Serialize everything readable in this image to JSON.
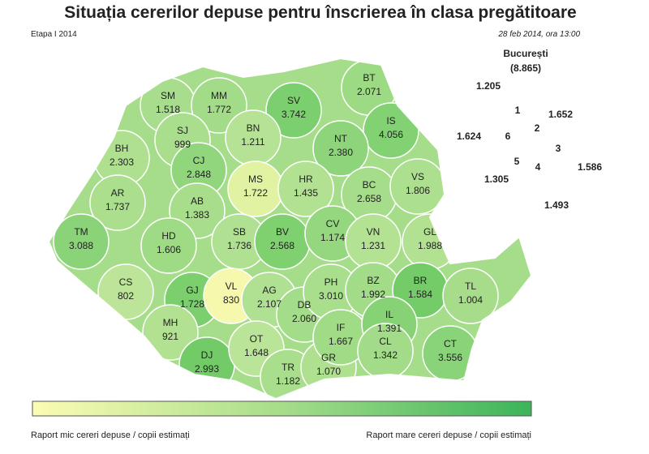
{
  "header": {
    "title": "Situația cererilor depuse pentru înscrierea în clasa pregătitoare",
    "stage": "Etapa I 2014",
    "date": "28 feb 2014, ora 13:00"
  },
  "counties": [
    {
      "code": "SM",
      "count": "1.518",
      "color": "#a7dd8c"
    },
    {
      "code": "MM",
      "count": "1.772",
      "color": "#a3dc88"
    },
    {
      "code": "BT",
      "count": "2.071",
      "color": "#9dda84"
    },
    {
      "code": "SV",
      "count": "3.742",
      "color": "#7ccf6e"
    },
    {
      "code": "IS",
      "count": "4.056",
      "color": "#82d172"
    },
    {
      "code": "BN",
      "count": "1.211",
      "color": "#b5e294"
    },
    {
      "code": "SJ",
      "count": "999",
      "color": "#a9de8c"
    },
    {
      "code": "BH",
      "count": "2.303",
      "color": "#aee08f"
    },
    {
      "code": "CJ",
      "count": "2.848",
      "color": "#91d67c"
    },
    {
      "code": "NT",
      "count": "2.380",
      "color": "#8dd47a"
    },
    {
      "code": "MS",
      "count": "1.722",
      "color": "#e1f2a2"
    },
    {
      "code": "HR",
      "count": "1.435",
      "color": "#b2e192"
    },
    {
      "code": "BC",
      "count": "2.658",
      "color": "#a6dd8a"
    },
    {
      "code": "VS",
      "count": "1.806",
      "color": "#acdf8e"
    },
    {
      "code": "AR",
      "count": "1.737",
      "color": "#abdf8d"
    },
    {
      "code": "AB",
      "count": "1.383",
      "color": "#a8de8b"
    },
    {
      "code": "TM",
      "count": "3.088",
      "color": "#8ad379"
    },
    {
      "code": "HD",
      "count": "1.606",
      "color": "#9fdb85"
    },
    {
      "code": "SB",
      "count": "1.736",
      "color": "#b0e091"
    },
    {
      "code": "BV",
      "count": "2.568",
      "color": "#7fd06f"
    },
    {
      "code": "CV",
      "count": "1.174",
      "color": "#94d77e"
    },
    {
      "code": "VN",
      "count": "1.231",
      "color": "#b4e293"
    },
    {
      "code": "GL",
      "count": "1.988",
      "color": "#b3e192"
    },
    {
      "code": "CS",
      "count": "802",
      "color": "#bce599"
    },
    {
      "code": "GJ",
      "count": "1.728",
      "color": "#7ccf6d"
    },
    {
      "code": "VL",
      "count": "830",
      "color": "#f6f8ae"
    },
    {
      "code": "AG",
      "count": "2.107",
      "color": "#b0e091"
    },
    {
      "code": "DB",
      "count": "2.060",
      "color": "#a4dd89"
    },
    {
      "code": "PH",
      "count": "3.010",
      "color": "#a9de8c"
    },
    {
      "code": "BZ",
      "count": "1.992",
      "color": "#a2dc88"
    },
    {
      "code": "BR",
      "count": "1.584",
      "color": "#74cc69"
    },
    {
      "code": "TL",
      "count": "1.004",
      "color": "#a7dd8a"
    },
    {
      "code": "MH",
      "count": "921",
      "color": "#b2e192"
    },
    {
      "code": "DJ",
      "count": "2.993",
      "color": "#73cb68"
    },
    {
      "code": "OT",
      "count": "1.648",
      "color": "#bae497"
    },
    {
      "code": "TR",
      "count": "1.182",
      "color": "#a9de8c"
    },
    {
      "code": "GR",
      "count": "1.070",
      "color": "#afe090"
    },
    {
      "code": "IF",
      "count": "1.667",
      "color": "#a0db86"
    },
    {
      "code": "IL",
      "count": "1.391",
      "color": "#86d274"
    },
    {
      "code": "CL",
      "count": "1.342",
      "color": "#a3dc88"
    },
    {
      "code": "CT",
      "count": "3.556",
      "color": "#89d378"
    }
  ],
  "bucharest": {
    "title": "București",
    "total": "(8.865)",
    "sectors": [
      {
        "label": "1",
        "count": "1.205",
        "color": "#b3e192"
      },
      {
        "label": "2",
        "count": "1.652",
        "color": "#8ed47b"
      },
      {
        "label": "3",
        "count": "1.586",
        "color": "#9ad981"
      },
      {
        "label": "4",
        "count": "1.493",
        "color": "#93d67e"
      },
      {
        "label": "5",
        "count": "1.305",
        "color": "#9ad981"
      },
      {
        "label": "6",
        "count": "1.624",
        "color": "#7ccf6e"
      }
    ]
  },
  "legend": {
    "low": "Raport mic cereri depuse / copii estimați",
    "high": "Raport mare cereri depuse / copii estimați"
  }
}
